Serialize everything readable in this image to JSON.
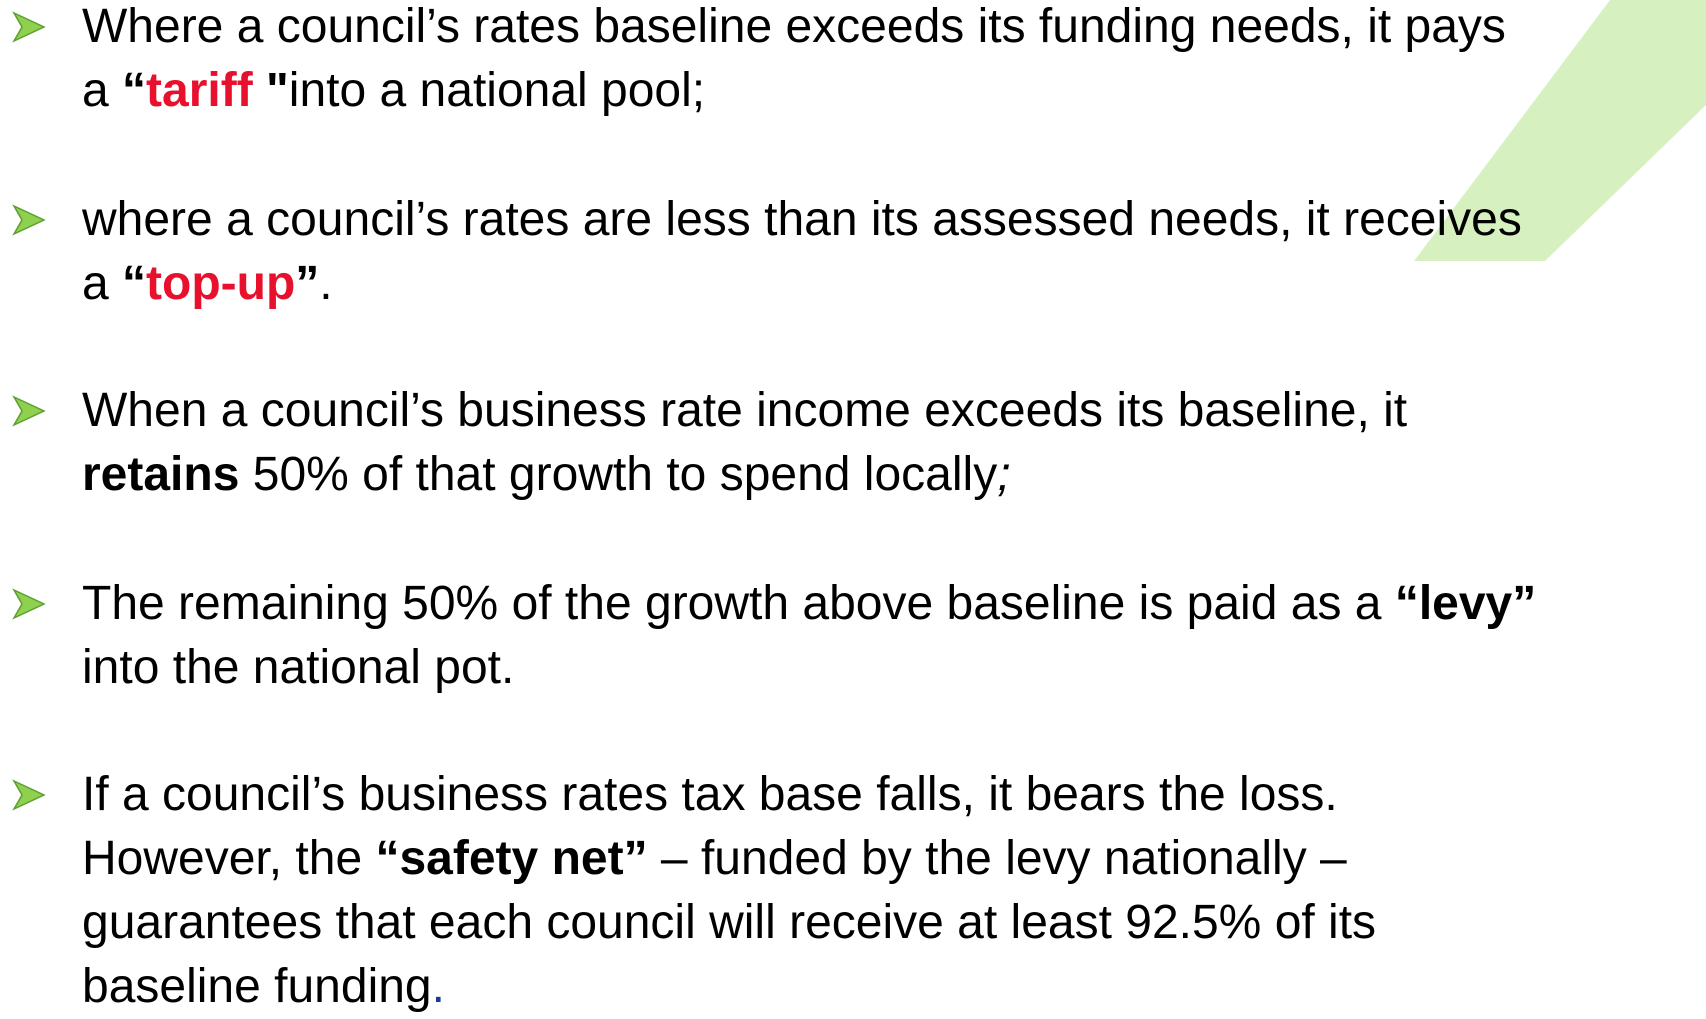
{
  "bullets": [
    {
      "lines": [
        {
          "runs": [
            {
              "text": "Where a council’s rates baseline exceeds its funding needs, it pays"
            }
          ]
        },
        {
          "runs": [
            {
              "text": "a "
            },
            {
              "text": "“",
              "style": "bold"
            },
            {
              "text": "tariff",
              "style": "bold-red"
            },
            {
              "text": " \"",
              "style": "bold"
            },
            {
              "text": "into a national pool;"
            }
          ]
        }
      ]
    },
    {
      "lines": [
        {
          "runs": [
            {
              "text": "where a council’s rates are less than its assessed needs, it receives"
            }
          ]
        },
        {
          "runs": [
            {
              "text": "a "
            },
            {
              "text": "“",
              "style": "bold"
            },
            {
              "text": "top-up",
              "style": "bold-red"
            },
            {
              "text": "”",
              "style": "bold"
            },
            {
              "text": "."
            }
          ]
        }
      ]
    },
    {
      "lines": [
        {
          "runs": [
            {
              "text": "When a council’s business rate income exceeds its baseline, it"
            }
          ]
        },
        {
          "runs": [
            {
              "text": "retains",
              "style": "bold"
            },
            {
              "text": " 50% of that growth to spend locally"
            },
            {
              "text": ";",
              "style": "italic"
            }
          ]
        }
      ]
    },
    {
      "lines": [
        {
          "runs": [
            {
              "text": "The remaining 50% of the growth above baseline is paid as a "
            },
            {
              "text": "“levy”",
              "style": "bold"
            }
          ]
        },
        {
          "runs": [
            {
              "text": "into the national pot."
            }
          ]
        }
      ]
    },
    {
      "lines": [
        {
          "runs": [
            {
              "text": "If a council’s business rates tax base falls, it bears the loss."
            }
          ]
        },
        {
          "runs": [
            {
              "text": "However, the "
            },
            {
              "text": "“safety net”",
              "style": "bold"
            },
            {
              "text": " – funded by the levy nationally –"
            }
          ]
        },
        {
          "runs": [
            {
              "text": "guarantees that each council will receive at least 92.5% of its"
            }
          ]
        },
        {
          "runs": [
            {
              "text": "baseline funding"
            },
            {
              "text": ".",
              "style": "navy"
            }
          ]
        }
      ]
    }
  ]
}
